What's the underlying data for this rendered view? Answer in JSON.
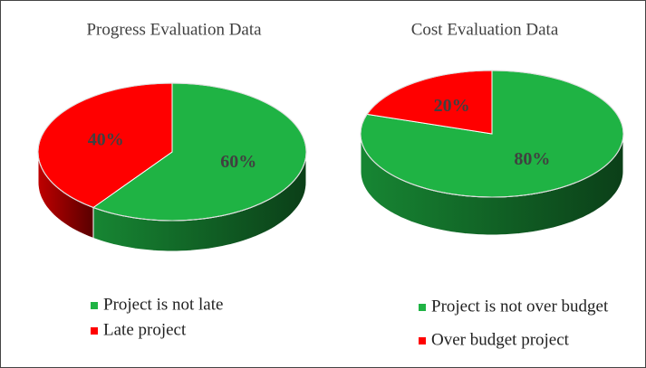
{
  "chart_data": [
    {
      "type": "pie",
      "title": "Progress Evaluation Data",
      "categories": [
        "Project is not late",
        "Late project"
      ],
      "values": [
        60,
        40
      ],
      "value_labels": [
        "60%",
        "40%"
      ],
      "colors": [
        "#1fb344",
        "#ff0000"
      ],
      "legend": "bottom"
    },
    {
      "type": "pie",
      "title": "Cost Evaluation Data",
      "categories": [
        "Project is not over budget",
        "Over budget project"
      ],
      "values": [
        80,
        20
      ],
      "value_labels": [
        "80%",
        "20%"
      ],
      "colors": [
        "#1fb344",
        "#ff0000"
      ],
      "legend": "bottom"
    }
  ]
}
